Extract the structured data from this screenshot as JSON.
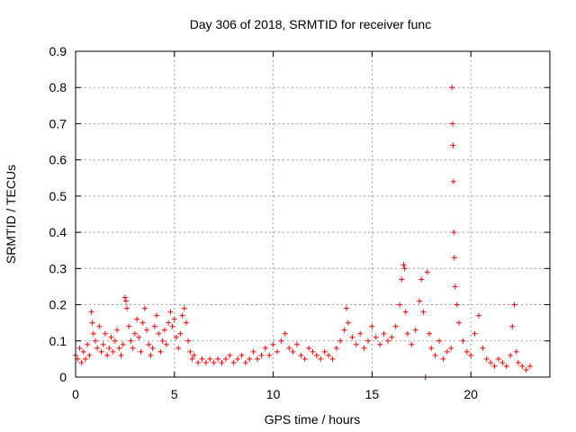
{
  "chart_data": {
    "type": "scatter",
    "title": "Day 306 of 2018, SRMTID for receiver func",
    "xlabel": "GPS time / hours",
    "ylabel": "SRMTID / TECUs",
    "xlim": [
      0,
      24
    ],
    "ylim": [
      0,
      0.9
    ],
    "x_ticks": [
      0,
      5,
      10,
      15,
      20
    ],
    "x_tick_labels": [
      "0",
      "5",
      "10",
      "15",
      "20"
    ],
    "y_ticks": [
      0,
      0.1,
      0.2,
      0.3,
      0.4,
      0.5,
      0.6,
      0.7,
      0.8,
      0.9
    ],
    "y_tick_labels": [
      "0",
      "0.1",
      "0.2",
      "0.3",
      "0.4",
      "0.5",
      "0.6",
      "0.7",
      "0.8",
      "0.9"
    ],
    "grid": true,
    "marker": "+",
    "marker_color": "#ff0000",
    "series": [
      {
        "name": "SRMTID",
        "points": [
          [
            0.0,
            0.06
          ],
          [
            0.1,
            0.05
          ],
          [
            0.2,
            0.08
          ],
          [
            0.3,
            0.04
          ],
          [
            0.4,
            0.07
          ],
          [
            0.5,
            0.05
          ],
          [
            0.6,
            0.09
          ],
          [
            0.7,
            0.06
          ],
          [
            0.8,
            0.18
          ],
          [
            0.85,
            0.15
          ],
          [
            0.9,
            0.12
          ],
          [
            1.0,
            0.1
          ],
          [
            1.1,
            0.08
          ],
          [
            1.2,
            0.14
          ],
          [
            1.3,
            0.07
          ],
          [
            1.4,
            0.09
          ],
          [
            1.5,
            0.12
          ],
          [
            1.6,
            0.06
          ],
          [
            1.7,
            0.08
          ],
          [
            1.8,
            0.11
          ],
          [
            1.9,
            0.07
          ],
          [
            2.0,
            0.1
          ],
          [
            2.1,
            0.13
          ],
          [
            2.2,
            0.08
          ],
          [
            2.3,
            0.06
          ],
          [
            2.4,
            0.09
          ],
          [
            2.5,
            0.22
          ],
          [
            2.55,
            0.21
          ],
          [
            2.6,
            0.19
          ],
          [
            2.7,
            0.14
          ],
          [
            2.8,
            0.1
          ],
          [
            2.9,
            0.08
          ],
          [
            3.0,
            0.12
          ],
          [
            3.1,
            0.16
          ],
          [
            3.2,
            0.11
          ],
          [
            3.3,
            0.07
          ],
          [
            3.4,
            0.15
          ],
          [
            3.5,
            0.19
          ],
          [
            3.6,
            0.13
          ],
          [
            3.7,
            0.09
          ],
          [
            3.8,
            0.06
          ],
          [
            3.9,
            0.08
          ],
          [
            4.0,
            0.14
          ],
          [
            4.1,
            0.17
          ],
          [
            4.2,
            0.12
          ],
          [
            4.3,
            0.07
          ],
          [
            4.4,
            0.1
          ],
          [
            4.5,
            0.13
          ],
          [
            4.6,
            0.09
          ],
          [
            4.7,
            0.15
          ],
          [
            4.8,
            0.18
          ],
          [
            4.9,
            0.14
          ],
          [
            5.0,
            0.16
          ],
          [
            5.1,
            0.11
          ],
          [
            5.2,
            0.08
          ],
          [
            5.3,
            0.12
          ],
          [
            5.4,
            0.17
          ],
          [
            5.5,
            0.19
          ],
          [
            5.6,
            0.15
          ],
          [
            5.7,
            0.1
          ],
          [
            5.8,
            0.07
          ],
          [
            5.9,
            0.05
          ],
          [
            6.0,
            0.06
          ],
          [
            6.2,
            0.04
          ],
          [
            6.4,
            0.05
          ],
          [
            6.6,
            0.04
          ],
          [
            6.8,
            0.05
          ],
          [
            7.0,
            0.04
          ],
          [
            7.2,
            0.05
          ],
          [
            7.4,
            0.04
          ],
          [
            7.6,
            0.05
          ],
          [
            7.8,
            0.06
          ],
          [
            8.0,
            0.04
          ],
          [
            8.2,
            0.05
          ],
          [
            8.4,
            0.06
          ],
          [
            8.6,
            0.04
          ],
          [
            8.8,
            0.05
          ],
          [
            9.0,
            0.07
          ],
          [
            9.2,
            0.05
          ],
          [
            9.4,
            0.06
          ],
          [
            9.6,
            0.08
          ],
          [
            9.8,
            0.06
          ],
          [
            10.0,
            0.09
          ],
          [
            10.2,
            0.07
          ],
          [
            10.4,
            0.1
          ],
          [
            10.6,
            0.12
          ],
          [
            10.8,
            0.08
          ],
          [
            11.0,
            0.07
          ],
          [
            11.2,
            0.09
          ],
          [
            11.4,
            0.06
          ],
          [
            11.6,
            0.05
          ],
          [
            11.8,
            0.08
          ],
          [
            12.0,
            0.07
          ],
          [
            12.2,
            0.06
          ],
          [
            12.4,
            0.05
          ],
          [
            12.6,
            0.07
          ],
          [
            12.8,
            0.06
          ],
          [
            13.0,
            0.05
          ],
          [
            13.2,
            0.08
          ],
          [
            13.4,
            0.1
          ],
          [
            13.6,
            0.13
          ],
          [
            13.7,
            0.19
          ],
          [
            13.8,
            0.15
          ],
          [
            14.0,
            0.11
          ],
          [
            14.2,
            0.09
          ],
          [
            14.4,
            0.12
          ],
          [
            14.6,
            0.08
          ],
          [
            14.8,
            0.1
          ],
          [
            15.0,
            0.14
          ],
          [
            15.2,
            0.11
          ],
          [
            15.4,
            0.09
          ],
          [
            15.6,
            0.12
          ],
          [
            15.8,
            0.1
          ],
          [
            16.0,
            0.11
          ],
          [
            16.2,
            0.14
          ],
          [
            16.4,
            0.2
          ],
          [
            16.5,
            0.27
          ],
          [
            16.6,
            0.31
          ],
          [
            16.65,
            0.3
          ],
          [
            16.7,
            0.18
          ],
          [
            16.8,
            0.12
          ],
          [
            17.0,
            0.09
          ],
          [
            17.2,
            0.13
          ],
          [
            17.4,
            0.21
          ],
          [
            17.5,
            0.27
          ],
          [
            17.6,
            0.18
          ],
          [
            17.7,
            0.0
          ],
          [
            17.8,
            0.29
          ],
          [
            17.9,
            0.12
          ],
          [
            18.0,
            0.08
          ],
          [
            18.2,
            0.06
          ],
          [
            18.4,
            0.1
          ],
          [
            18.6,
            0.05
          ],
          [
            18.8,
            0.07
          ],
          [
            19.0,
            0.08
          ],
          [
            19.05,
            0.8
          ],
          [
            19.08,
            0.7
          ],
          [
            19.1,
            0.64
          ],
          [
            19.12,
            0.54
          ],
          [
            19.14,
            0.4
          ],
          [
            19.16,
            0.33
          ],
          [
            19.2,
            0.25
          ],
          [
            19.3,
            0.2
          ],
          [
            19.4,
            0.15
          ],
          [
            19.6,
            0.1
          ],
          [
            19.8,
            0.07
          ],
          [
            20.0,
            0.06
          ],
          [
            20.2,
            0.12
          ],
          [
            20.4,
            0.17
          ],
          [
            20.6,
            0.08
          ],
          [
            20.8,
            0.05
          ],
          [
            21.0,
            0.04
          ],
          [
            21.2,
            0.03
          ],
          [
            21.4,
            0.05
          ],
          [
            21.6,
            0.04
          ],
          [
            21.8,
            0.03
          ],
          [
            22.0,
            0.06
          ],
          [
            22.1,
            0.14
          ],
          [
            22.2,
            0.2
          ],
          [
            22.3,
            0.07
          ],
          [
            22.4,
            0.04
          ],
          [
            22.6,
            0.03
          ],
          [
            22.8,
            0.02
          ],
          [
            23.0,
            0.03
          ]
        ]
      }
    ]
  }
}
